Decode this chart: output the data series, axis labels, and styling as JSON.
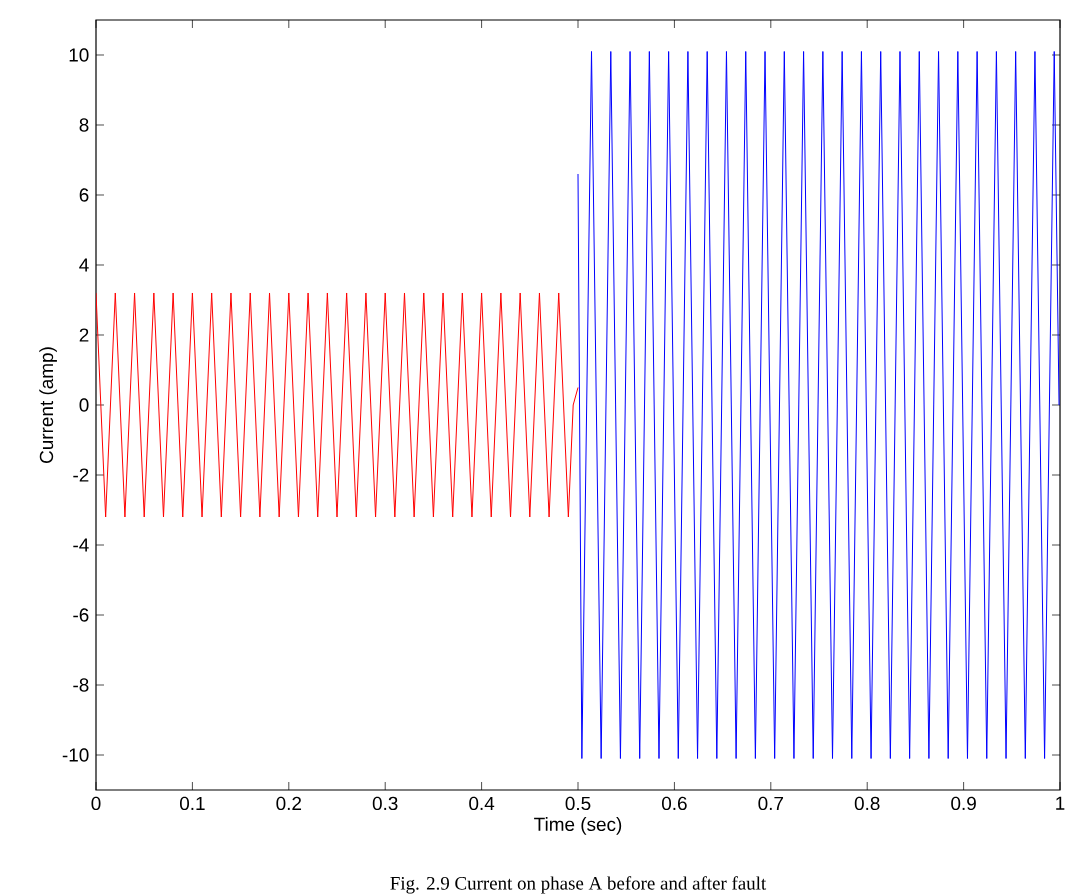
{
  "chart_data": {
    "type": "line",
    "xlabel": "Time (sec)",
    "ylabel": "Current (amp)",
    "annotations": [
      "Fig. 2.9 Current on phase A before and after fault"
    ],
    "xlim": [
      0,
      1
    ],
    "ylim": [
      -11,
      11
    ],
    "xticks": [
      0,
      0.1,
      0.2,
      0.3,
      0.4,
      0.5,
      0.6,
      0.7,
      0.8,
      0.9,
      1
    ],
    "yticks": [
      -10,
      -8,
      -6,
      -4,
      -2,
      0,
      2,
      4,
      6,
      8,
      10
    ],
    "grid": false,
    "marker": "none",
    "line_style": "solid",
    "series": [
      {
        "color": "#ff0000",
        "x": [
          0,
          0.005,
          0.01,
          0.015,
          0.02,
          0.025,
          0.03,
          0.035,
          0.04,
          0.045,
          0.05,
          0.055,
          0.06,
          0.065,
          0.07,
          0.075,
          0.08,
          0.085,
          0.09,
          0.095,
          0.1,
          0.105,
          0.11,
          0.115,
          0.12,
          0.125,
          0.13,
          0.135,
          0.14,
          0.145,
          0.15,
          0.155,
          0.16,
          0.165,
          0.17,
          0.175,
          0.18,
          0.185,
          0.19,
          0.195,
          0.2,
          0.205,
          0.21,
          0.215,
          0.22,
          0.225,
          0.23,
          0.235,
          0.24,
          0.245,
          0.25,
          0.255,
          0.26,
          0.265,
          0.27,
          0.275,
          0.28,
          0.285,
          0.29,
          0.295,
          0.3,
          0.305,
          0.31,
          0.315,
          0.32,
          0.325,
          0.33,
          0.335,
          0.34,
          0.345,
          0.35,
          0.355,
          0.36,
          0.365,
          0.37,
          0.375,
          0.38,
          0.385,
          0.39,
          0.395,
          0.4,
          0.405,
          0.41,
          0.415,
          0.42,
          0.425,
          0.43,
          0.435,
          0.44,
          0.445,
          0.45,
          0.455,
          0.46,
          0.465,
          0.47,
          0.475,
          0.48,
          0.485,
          0.49,
          0.495,
          0.5
        ],
        "values": [
          3.2,
          0,
          -3.2,
          0,
          3.2,
          0,
          -3.2,
          0,
          3.2,
          0,
          -3.2,
          0,
          3.2,
          0,
          -3.2,
          0,
          3.2,
          0,
          -3.2,
          0,
          3.2,
          0,
          -3.2,
          0,
          3.2,
          0,
          -3.2,
          0,
          3.2,
          0,
          -3.2,
          0,
          3.2,
          0,
          -3.2,
          0,
          3.2,
          0,
          -3.2,
          0,
          3.2,
          0,
          -3.2,
          0,
          3.2,
          0,
          -3.2,
          0,
          3.2,
          0,
          -3.2,
          0,
          3.2,
          0,
          -3.2,
          0,
          3.2,
          0,
          -3.2,
          0,
          3.2,
          0,
          -3.2,
          0,
          3.2,
          0,
          -3.2,
          0,
          3.2,
          0,
          -3.2,
          0,
          3.2,
          0,
          -3.2,
          0,
          3.2,
          0,
          -3.2,
          0,
          3.2,
          0,
          -3.2,
          0,
          3.2,
          0,
          -3.2,
          0,
          3.2,
          0,
          -3.2,
          0,
          3.2,
          0,
          -3.2,
          0,
          3.2,
          0,
          -3.2,
          0,
          0.5
        ]
      },
      {
        "color": "#0000ff",
        "x": [
          0.5,
          0.504,
          0.509,
          0.514,
          0.519,
          0.524,
          0.529,
          0.534,
          0.539,
          0.544,
          0.549,
          0.554,
          0.559,
          0.564,
          0.569,
          0.574,
          0.579,
          0.584,
          0.589,
          0.594,
          0.599,
          0.604,
          0.609,
          0.614,
          0.619,
          0.624,
          0.629,
          0.634,
          0.639,
          0.644,
          0.649,
          0.654,
          0.659,
          0.664,
          0.669,
          0.674,
          0.679,
          0.684,
          0.689,
          0.694,
          0.699,
          0.704,
          0.709,
          0.714,
          0.719,
          0.724,
          0.729,
          0.734,
          0.739,
          0.744,
          0.749,
          0.754,
          0.759,
          0.764,
          0.769,
          0.774,
          0.779,
          0.784,
          0.789,
          0.794,
          0.799,
          0.804,
          0.809,
          0.814,
          0.819,
          0.824,
          0.829,
          0.834,
          0.839,
          0.844,
          0.849,
          0.854,
          0.859,
          0.864,
          0.869,
          0.874,
          0.879,
          0.884,
          0.889,
          0.894,
          0.899,
          0.904,
          0.909,
          0.914,
          0.919,
          0.924,
          0.929,
          0.934,
          0.939,
          0.944,
          0.949,
          0.954,
          0.959,
          0.964,
          0.969,
          0.974,
          0.979,
          0.984,
          0.989,
          0.994,
          0.999
        ],
        "values": [
          6.6,
          -10.1,
          0,
          10.1,
          0,
          -10.1,
          0,
          10.1,
          0,
          -10.1,
          0,
          10.1,
          0,
          -10.1,
          0,
          10.1,
          0,
          -10.1,
          0,
          10.1,
          0,
          -10.1,
          0,
          10.1,
          0,
          -10.1,
          0,
          10.1,
          0,
          -10.1,
          0,
          10.1,
          0,
          -10.1,
          0,
          10.1,
          0,
          -10.1,
          0,
          10.1,
          0,
          -10.1,
          0,
          10.1,
          0,
          -10.1,
          0,
          10.1,
          0,
          -10.1,
          0,
          10.1,
          0,
          -10.1,
          0,
          10.1,
          0,
          -10.1,
          0,
          10.1,
          0,
          -10.1,
          0,
          10.1,
          0,
          -10.1,
          0,
          10.1,
          0,
          -10.1,
          0,
          10.1,
          0,
          -10.1,
          0,
          10.1,
          0,
          -10.1,
          0,
          10.1,
          0,
          -10.1,
          0,
          10.1,
          0,
          -10.1,
          0,
          10.1,
          0,
          -10.1,
          0,
          10.1,
          0,
          -10.1,
          0,
          10.1,
          0,
          -10.1,
          0,
          10.1,
          0
        ]
      }
    ]
  }
}
